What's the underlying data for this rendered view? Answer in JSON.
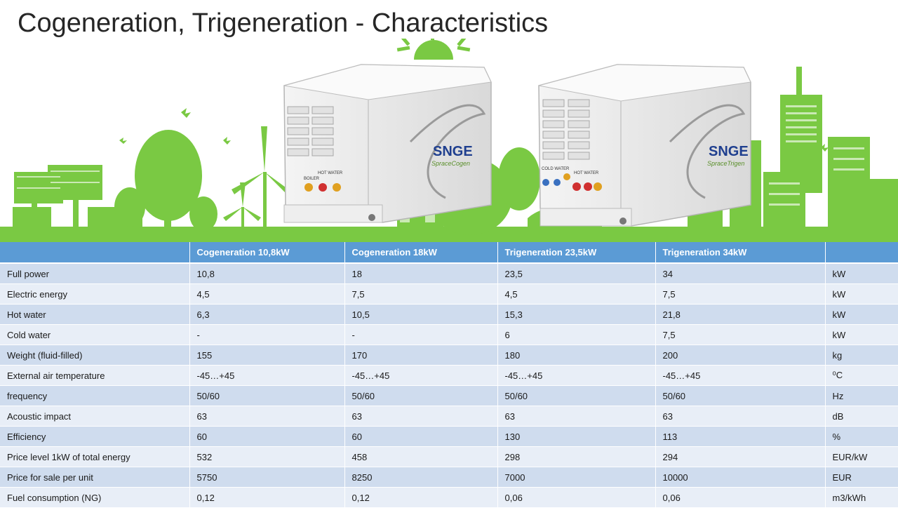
{
  "slide": {
    "title": "Cogeneration, Trigeneration - Characteristics"
  },
  "units": [
    {
      "brand": "SNGE",
      "model": "SpraceCogen",
      "label_a": "BOILER",
      "label_b": "HOT WATER"
    },
    {
      "brand": "SNGE",
      "model": "SpraceTrigen",
      "label_a": "COLD WATER",
      "label_b": "HOT WATER"
    }
  ],
  "table": {
    "columns": [
      "",
      "Cogeneration 10,8kW",
      "Cogeneration 18kW",
      "Trigeneration 23,5kW",
      "Trigeneration 34kW",
      ""
    ],
    "rows": [
      {
        "label": "Full power",
        "values": [
          "10,8",
          "18",
          "23,5",
          "34"
        ],
        "unit": "kW"
      },
      {
        "label": "Electric energy",
        "values": [
          "4,5",
          "7,5",
          "4,5",
          "7,5"
        ],
        "unit": "kW"
      },
      {
        "label": "Hot water",
        "values": [
          "6,3",
          "10,5",
          "15,3",
          "21,8"
        ],
        "unit": "kW"
      },
      {
        "label": "Cold water",
        "values": [
          "-",
          "-",
          "6",
          "7,5"
        ],
        "unit": "kW"
      },
      {
        "label": "Weight (fluid-filled)",
        "values": [
          "155",
          "170",
          "180",
          "200"
        ],
        "unit": "kg"
      },
      {
        "label": "External air temperature",
        "values": [
          "-45…+45",
          "-45…+45",
          "-45…+45",
          "-45…+45"
        ],
        "unit": "⁰C"
      },
      {
        "label": "frequency",
        "values": [
          "50/60",
          "50/60",
          "50/60",
          "50/60"
        ],
        "unit": "Hz"
      },
      {
        "label": "Acoustic impact",
        "values": [
          "63",
          "63",
          "63",
          "63"
        ],
        "unit": "dB"
      },
      {
        "label": "Efficiency",
        "values": [
          "60",
          "60",
          "130",
          "113"
        ],
        "unit": "%"
      },
      {
        "label": "Price level 1kW of total energy",
        "values": [
          "532",
          "458",
          "298",
          "294"
        ],
        "unit": "EUR/kW"
      },
      {
        "label": "Price for sale per unit",
        "values": [
          "5750",
          "8250",
          "7000",
          "10000"
        ],
        "unit": "EUR"
      },
      {
        "label": "Fuel consumption  (NG)",
        "values": [
          "0,12",
          "0,12",
          "0,06",
          "0,06"
        ],
        "unit": "m3/kWh"
      }
    ]
  },
  "colors": {
    "header": "#5b9bd5",
    "row_odd": "#cfdcee",
    "row_even": "#e8eef7",
    "green": "#7ac943"
  }
}
